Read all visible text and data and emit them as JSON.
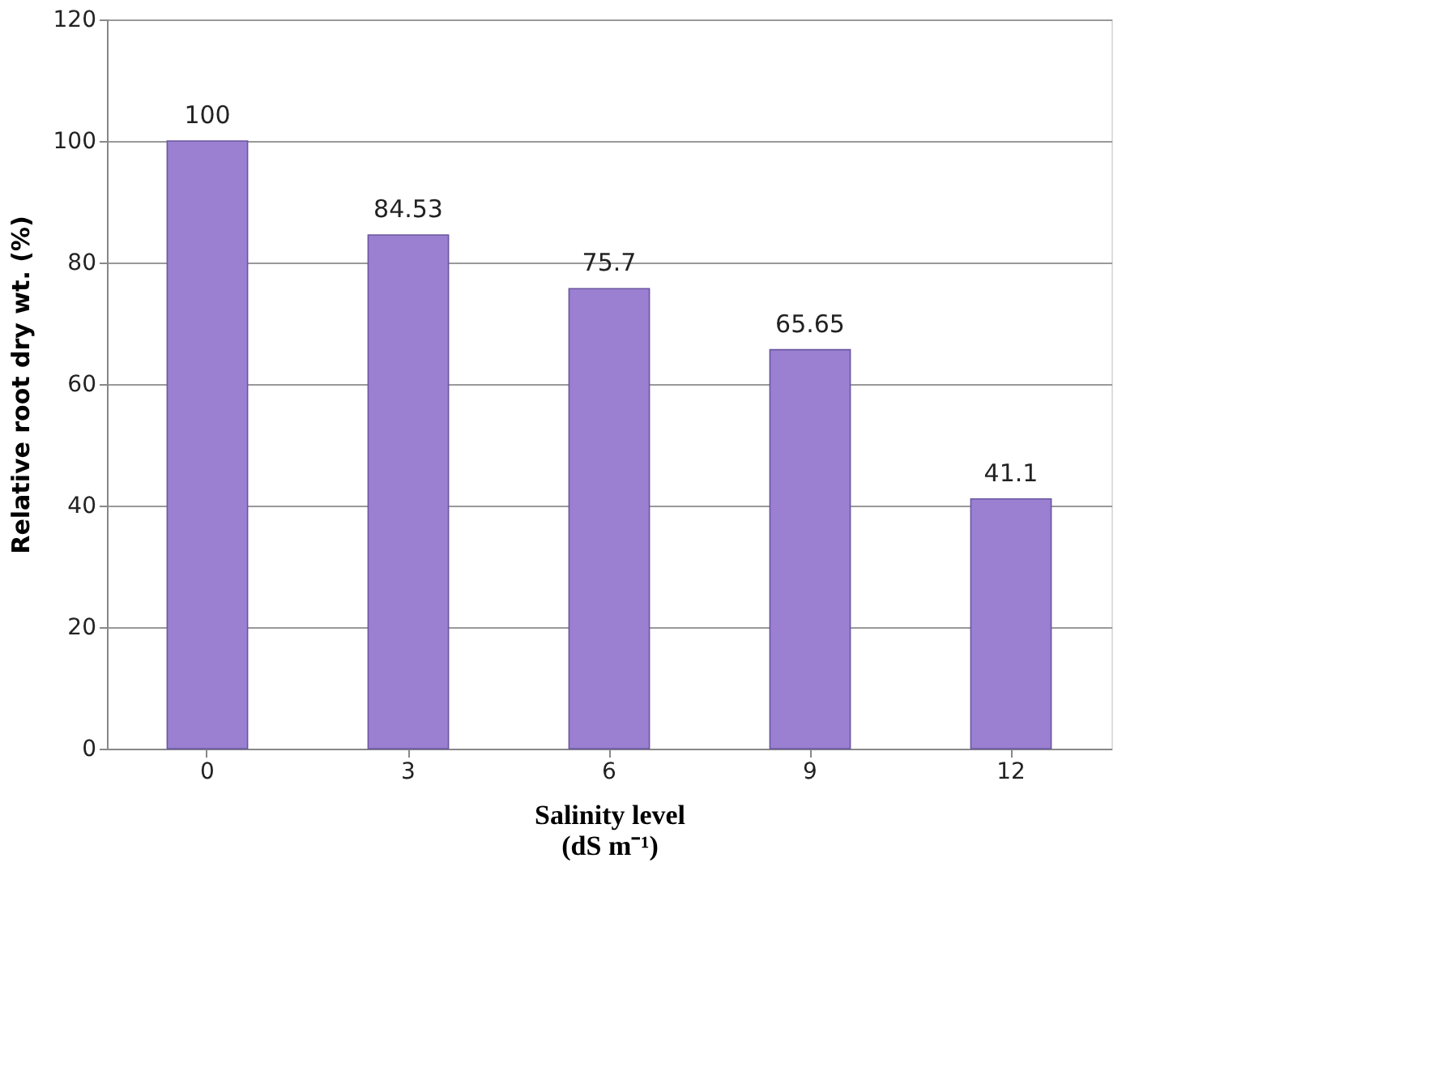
{
  "chart_data": {
    "type": "bar",
    "xlabel": "Salinity level\n(dS m⁻¹)",
    "ylabel": "Relative root dry wt. (%)",
    "categories": [
      "0",
      "3",
      "6",
      "9",
      "12"
    ],
    "values": [
      100,
      84.53,
      75.7,
      65.65,
      41.1
    ],
    "color": "#9b80d2",
    "ylim": [
      0,
      120
    ],
    "yticks": [
      0,
      20,
      40,
      60,
      80,
      100,
      120
    ],
    "grid": "y",
    "data_labels": true
  }
}
